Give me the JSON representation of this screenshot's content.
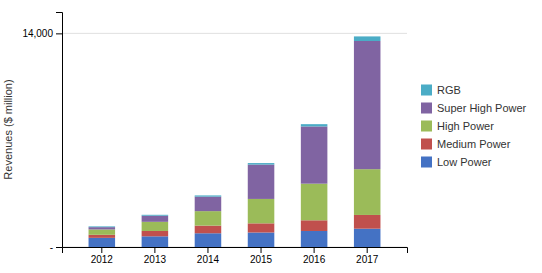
{
  "chart_data": {
    "type": "bar",
    "stacked": true,
    "ylabel": "Revenues ($ million)",
    "categories": [
      "2012",
      "2013",
      "2014",
      "2015",
      "2016",
      "2017"
    ],
    "series": [
      {
        "name": "Low Power",
        "color": "#4472C4",
        "values": [
          600,
          700,
          900,
          950,
          1050,
          1200
        ]
      },
      {
        "name": "Medium Power",
        "color": "#C0504D",
        "values": [
          200,
          350,
          500,
          600,
          700,
          900
        ]
      },
      {
        "name": "High Power",
        "color": "#9BBB59",
        "values": [
          350,
          600,
          950,
          1600,
          2400,
          3000
        ]
      },
      {
        "name": "Super High Power",
        "color": "#8064A2",
        "values": [
          150,
          400,
          950,
          2250,
          3750,
          8400
        ]
      },
      {
        "name": "RGB",
        "color": "#4BACC6",
        "values": [
          50,
          60,
          80,
          100,
          150,
          300
        ]
      }
    ],
    "ylim": [
      0,
      15400
    ],
    "yticks": [
      {
        "value": 0,
        "label": "-"
      },
      {
        "value": 14000,
        "label": "14,000"
      }
    ],
    "grid": true,
    "legend": "right"
  }
}
